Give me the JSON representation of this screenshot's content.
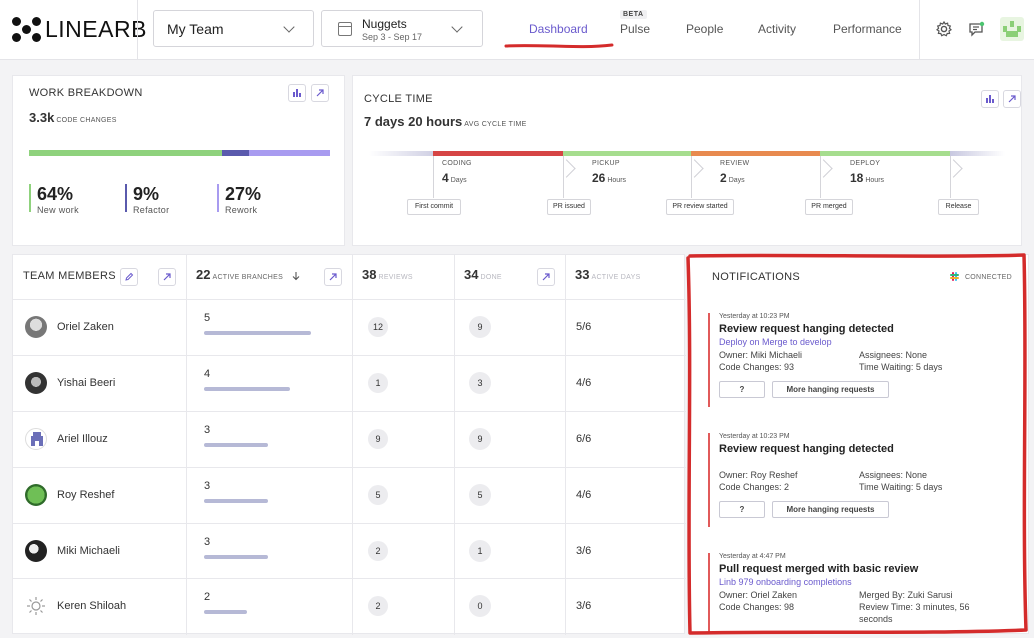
{
  "brand": {
    "name": "LINEARB"
  },
  "header": {
    "team_selector": {
      "label": "My Team"
    },
    "date_selector": {
      "title": "Nuggets",
      "range": "Sep 3 - Sep 17"
    },
    "nav": [
      {
        "label": "Dashboard",
        "active": true
      },
      {
        "label": "Pulse",
        "badge": "BETA"
      },
      {
        "label": "People"
      },
      {
        "label": "Activity"
      },
      {
        "label": "Performance"
      }
    ],
    "icons": [
      "gear-icon",
      "message-icon",
      "team-avatar"
    ]
  },
  "work_breakdown": {
    "title": "WORK BREAKDOWN",
    "value": "3.3k",
    "unit": "CODE CHANGES",
    "stats": [
      {
        "pct": "64%",
        "label": "New work",
        "color": "#8fd27d",
        "fraction": 0.64
      },
      {
        "pct": "9%",
        "label": "Refactor",
        "color": "#5a5aad",
        "fraction": 0.09
      },
      {
        "pct": "27%",
        "label": "Rework",
        "color": "#a89bf0",
        "fraction": 0.27
      }
    ]
  },
  "cycle_time": {
    "title": "CYCLE TIME",
    "value": "7 days 20 hours",
    "unit": "AVG CYCLE TIME",
    "stages": [
      {
        "name": "CODING",
        "value": "4",
        "unit": "Days",
        "color": "#d64545"
      },
      {
        "name": "PICKUP",
        "value": "26",
        "unit": "Hours",
        "color": "#a6dd8e"
      },
      {
        "name": "REVIEW",
        "value": "2",
        "unit": "Days",
        "color": "#e88a4f"
      },
      {
        "name": "DEPLOY",
        "value": "18",
        "unit": "Hours",
        "color": "#a6dd8e"
      }
    ],
    "events": [
      "First commit",
      "PR issued",
      "PR review started",
      "PR merged",
      "Release"
    ]
  },
  "team": {
    "headers": {
      "members": "TEAM MEMBERS",
      "branches_value": "22",
      "branches_label": "ACTIVE BRANCHES",
      "reviews_value": "38",
      "reviews_label": "REVIEWS",
      "done_value": "34",
      "done_label": "DONE",
      "days_value": "33",
      "days_label": "ACTIVE DAYS"
    },
    "members": [
      {
        "name": "Oriel Zaken",
        "branches": "5",
        "branch_level": 1.0,
        "reviews": "12",
        "done": "9",
        "active_days": "5/6"
      },
      {
        "name": "Yishai Beeri",
        "branches": "4",
        "branch_level": 0.8,
        "reviews": "1",
        "done": "3",
        "active_days": "4/6"
      },
      {
        "name": "Ariel Illouz",
        "branches": "3",
        "branch_level": 0.6,
        "reviews": "9",
        "done": "9",
        "active_days": "6/6"
      },
      {
        "name": "Roy Reshef",
        "branches": "3",
        "branch_level": 0.6,
        "reviews": "5",
        "done": "5",
        "active_days": "4/6"
      },
      {
        "name": "Miki Michaeli",
        "branches": "3",
        "branch_level": 0.6,
        "reviews": "2",
        "done": "1",
        "active_days": "3/6"
      },
      {
        "name": "Keren Shiloah",
        "branches": "2",
        "branch_level": 0.4,
        "reviews": "2",
        "done": "0",
        "active_days": "3/6"
      }
    ]
  },
  "notifications": {
    "title": "NOTIFICATIONS",
    "status": "CONNECTED",
    "items": [
      {
        "time": "Yesterday at 10:23 PM",
        "title": "Review request hanging detected",
        "link": "Deploy on Merge to develop",
        "left1": "Owner: Miki Michaeli",
        "right1": "Assignees: None",
        "left2": "Code Changes: 93",
        "right2": "Time Waiting: 5 days",
        "btn_q": "?",
        "btn_more": "More hanging requests"
      },
      {
        "time": "Yesterday at 10:23 PM",
        "title": "Review request hanging detected",
        "link": "",
        "left1": "Owner: Roy Reshef",
        "right1": "Assignees: None",
        "left2": "Code Changes: 2",
        "right2": "Time Waiting: 5 days",
        "btn_q": "?",
        "btn_more": "More hanging requests"
      },
      {
        "time": "Yesterday at 4:47 PM",
        "title": "Pull request merged with basic review",
        "link": "Linb 979 onboarding completions",
        "left1": "Owner: Oriel Zaken",
        "right1": "Merged By: Zuki Sarusi",
        "left2": "Code Changes: 98",
        "right2": "Review Time: 3 minutes, 56 seconds"
      }
    ]
  }
}
